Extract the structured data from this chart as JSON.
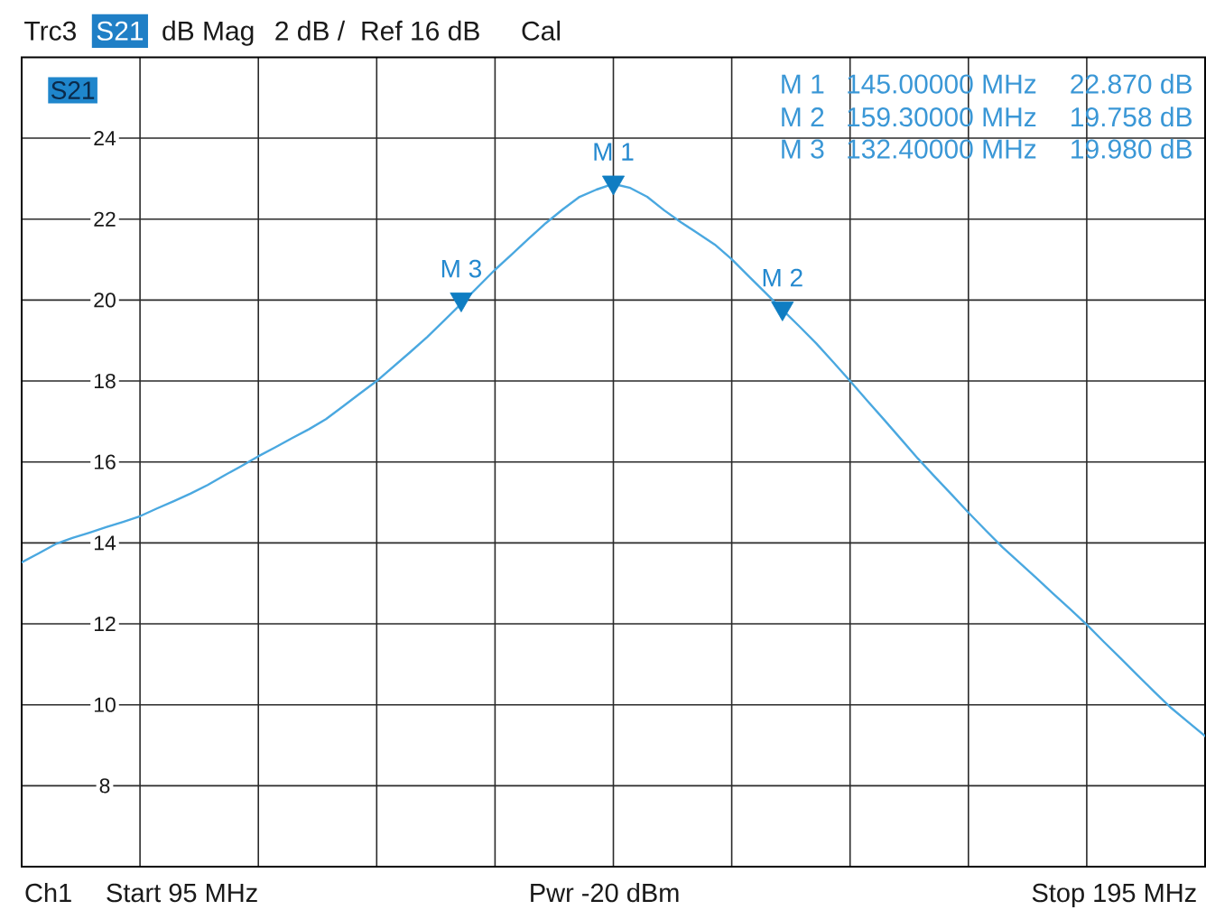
{
  "chart_data": {
    "type": "line",
    "annotations": [
      "Trc3",
      "S21",
      "dB Mag",
      "2 dB /",
      "Ref 16 dB",
      "Cal",
      "S21",
      "M 1",
      "145.00000 MHz",
      "22.870 dB",
      "M 2",
      "159.30000 MHz",
      "19.758 dB",
      "M 3",
      "132.40000 MHz",
      "19.980 dB",
      "M 3",
      "M 1",
      "M 2",
      "Ch1",
      "Start 95 MHz",
      "Pwr -20 dBm",
      "Stop 195 MHz"
    ],
    "categories": [
      null,
      null,
      null,
      null,
      null,
      null,
      null,
      null,
      null,
      null,
      null,
      null,
      null,
      null,
      null,
      null,
      null,
      null,
      null,
      null,
      null,
      null,
      null,
      null,
      null,
      null,
      null,
      null,
      null,
      null,
      null,
      null,
      null,
      null,
      null,
      null,
      null,
      null,
      null,
      null,
      null,
      null,
      null,
      null,
      null,
      null,
      null,
      null,
      null,
      null,
      null,
      null,
      null,
      null,
      null,
      null,
      null,
      null,
      null,
      null,
      null,
      null,
      null,
      null,
      null,
      null,
      null,
      null,
      null,
      null,
      null
    ],
    "series": [
      {
        "color": "#4aa8e0",
        "values": [
          13.52,
          13.74,
          13.97,
          14.12,
          14.25,
          14.39,
          14.52,
          14.66,
          14.85,
          15.03,
          15.22,
          15.43,
          15.67,
          15.9,
          16.14,
          16.36,
          16.59,
          16.81,
          17.06,
          17.37,
          17.69,
          18.0,
          18.36,
          18.72,
          19.09,
          19.5,
          19.91,
          20.33,
          20.75,
          21.13,
          21.52,
          21.9,
          22.24,
          22.55,
          22.73,
          22.87,
          22.77,
          22.55,
          22.22,
          21.92,
          21.65,
          21.37,
          21.01,
          20.59,
          20.18,
          19.76,
          19.35,
          18.93,
          18.47,
          18.0,
          17.52,
          17.05,
          16.57,
          16.09,
          15.64,
          15.2,
          14.75,
          14.32,
          13.9,
          13.52,
          13.14,
          12.75,
          12.37,
          11.98,
          11.56,
          11.15,
          10.73,
          10.32,
          9.92,
          9.57,
          9.23
        ]
      },
      {
        "type": "scatter",
        "color": "#0f7dc2",
        "marker": "triangle",
        "values": [
          null,
          null,
          null,
          null,
          null,
          null,
          null,
          null,
          null,
          null,
          null,
          null,
          null,
          null,
          null,
          null,
          null,
          null,
          null,
          null,
          null,
          null,
          null,
          null,
          null,
          null,
          19.98,
          null,
          null,
          null,
          null,
          null,
          null,
          null,
          null,
          22.87,
          null,
          null,
          null,
          null,
          null,
          null,
          null,
          null,
          null,
          19.758,
          null,
          null,
          null,
          null,
          null,
          null,
          null,
          null,
          null,
          null,
          null,
          null,
          null,
          null,
          null,
          null,
          null,
          null,
          null,
          null,
          null,
          null,
          null,
          null,
          null
        ]
      }
    ],
    "ylim": [
      6,
      26
    ],
    "yticks": [
      8,
      10,
      12,
      14,
      16,
      18,
      20,
      22,
      24
    ],
    "grid": true
  }
}
